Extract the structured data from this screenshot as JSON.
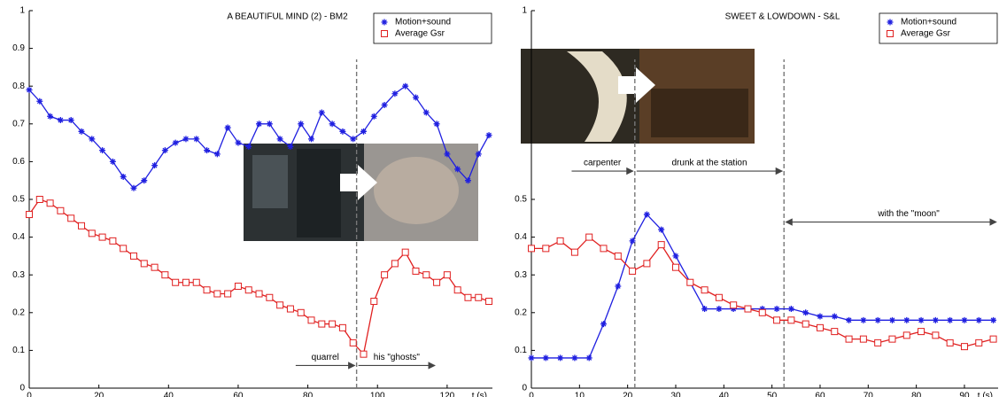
{
  "chart_data": [
    {
      "type": "line",
      "title": "A BEAUTIFUL MIND (2) - BM2",
      "x_label": "t (s)",
      "x": [
        0,
        3,
        6,
        9,
        12,
        15,
        18,
        21,
        24,
        27,
        30,
        33,
        36,
        39,
        42,
        45,
        48,
        51,
        54,
        57,
        60,
        63,
        66,
        69,
        72,
        75,
        78,
        81,
        84,
        87,
        90,
        93,
        96,
        99,
        102,
        105,
        108,
        111,
        114,
        117,
        120,
        123,
        126,
        129,
        132
      ],
      "series": [
        {
          "name": "Motion+sound",
          "color": "#1f1fe0",
          "marker": "star",
          "values": [
            0.79,
            0.76,
            0.72,
            0.71,
            0.71,
            0.68,
            0.66,
            0.63,
            0.6,
            0.56,
            0.53,
            0.55,
            0.59,
            0.63,
            0.65,
            0.66,
            0.66,
            0.63,
            0.62,
            0.69,
            0.65,
            0.64,
            0.7,
            0.7,
            0.66,
            0.64,
            0.7,
            0.66,
            0.73,
            0.7,
            0.68,
            0.66,
            0.68,
            0.72,
            0.75,
            0.78,
            0.8,
            0.77,
            0.73,
            0.7,
            0.62,
            0.58,
            0.55,
            0.62,
            0.67
          ]
        },
        {
          "name": "Average Gsr",
          "color": "#e02020",
          "marker": "square",
          "values": [
            0.46,
            0.5,
            0.49,
            0.47,
            0.45,
            0.43,
            0.41,
            0.4,
            0.39,
            0.37,
            0.35,
            0.33,
            0.32,
            0.3,
            0.28,
            0.28,
            0.28,
            0.26,
            0.25,
            0.25,
            0.27,
            0.26,
            0.25,
            0.24,
            0.22,
            0.21,
            0.2,
            0.18,
            0.17,
            0.17,
            0.16,
            0.12,
            0.09,
            0.23,
            0.3,
            0.33,
            0.36,
            0.31,
            0.3,
            0.28,
            0.3,
            0.26,
            0.24,
            0.24,
            0.23
          ]
        }
      ],
      "xlim": [
        0,
        133
      ],
      "xticks": [
        0,
        20,
        40,
        60,
        80,
        100,
        120
      ],
      "ylim": [
        0,
        1
      ],
      "yticks": [
        0,
        0.1,
        0.2,
        0.3,
        0.4,
        0.5,
        0.6,
        0.7,
        0.8,
        0.9,
        1
      ],
      "legend": "upper right",
      "vlines": [
        94
      ],
      "annotations": [
        {
          "text": "quarrel",
          "x0": 76,
          "x1": 94,
          "y": 0.06,
          "arrowheads": "end"
        },
        {
          "text": "his \"ghosts\"",
          "x0": 94,
          "x1": 117,
          "y": 0.06,
          "arrowheads": "end"
        }
      ]
    },
    {
      "type": "line",
      "title": "SWEET & LOWDOWN - S&L",
      "x_label": "t (s)",
      "x": [
        0,
        3,
        6,
        9,
        12,
        15,
        18,
        21,
        24,
        27,
        30,
        33,
        36,
        39,
        42,
        45,
        48,
        51,
        54,
        57,
        60,
        63,
        66,
        69,
        72,
        75,
        78,
        81,
        84,
        87,
        90,
        93,
        96
      ],
      "series": [
        {
          "name": "Motion+sound",
          "color": "#1f1fe0",
          "marker": "star",
          "values": [
            0.08,
            0.08,
            0.08,
            0.08,
            0.08,
            0.17,
            0.27,
            0.39,
            0.46,
            0.42,
            0.35,
            0.28,
            0.21,
            0.21,
            0.21,
            0.21,
            0.21,
            0.21,
            0.21,
            0.2,
            0.19,
            0.19,
            0.18,
            0.18,
            0.18,
            0.18,
            0.18,
            0.18,
            0.18,
            0.18,
            0.18,
            0.18,
            0.18
          ]
        },
        {
          "name": "Average Gsr",
          "color": "#e02020",
          "marker": "square",
          "values": [
            0.37,
            0.37,
            0.39,
            0.36,
            0.4,
            0.37,
            0.35,
            0.31,
            0.33,
            0.38,
            0.32,
            0.28,
            0.26,
            0.24,
            0.22,
            0.21,
            0.2,
            0.18,
            0.18,
            0.17,
            0.16,
            0.15,
            0.13,
            0.13,
            0.12,
            0.13,
            0.14,
            0.15,
            0.14,
            0.12,
            0.11,
            0.12,
            0.13
          ]
        }
      ],
      "xlim": [
        0,
        97
      ],
      "xticks": [
        0,
        10,
        20,
        30,
        40,
        50,
        60,
        70,
        80,
        90
      ],
      "ylim": [
        0,
        1
      ],
      "yticks": [
        0,
        0.1,
        0.2,
        0.3,
        0.4,
        0.5,
        1
      ],
      "legend": "upper right",
      "vlines": [
        21.5,
        52.5
      ],
      "annotations": [
        {
          "text": "carpenter",
          "x0": 8,
          "x1": 21.5,
          "y": 0.575,
          "arrowheads": "end"
        },
        {
          "text": "drunk at the station",
          "x0": 21.5,
          "x1": 52.5,
          "y": 0.575,
          "arrowheads": "end"
        },
        {
          "text": "with the \"moon\"",
          "x0": 52.5,
          "x1": 97,
          "y": 0.44,
          "arrowheads": "both"
        }
      ]
    }
  ]
}
